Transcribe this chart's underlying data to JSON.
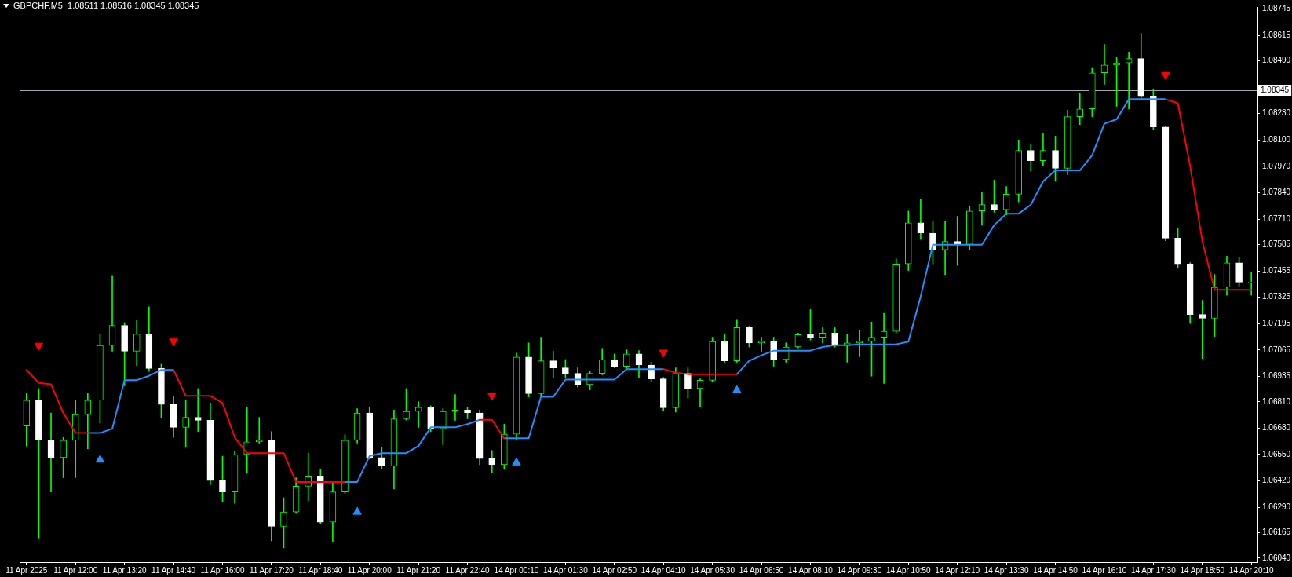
{
  "chart_data": {
    "type": "candlestick",
    "title": "GBPCHF,M5  1.08511 1.08516 1.08345 1.08345",
    "categories": [
      "11 Apr 2025",
      null,
      null,
      null,
      "11 Apr 12:00",
      null,
      null,
      null,
      "11 Apr 13:20",
      null,
      null,
      null,
      "11 Apr 14:40",
      null,
      null,
      null,
      "11 Apr 16:00",
      null,
      null,
      null,
      "11 Apr 17:20",
      null,
      null,
      null,
      "11 Apr 18:40",
      null,
      null,
      null,
      "11 Apr 20:00",
      null,
      null,
      null,
      "11 Apr 21:20",
      null,
      null,
      null,
      "11 Apr 22:40",
      null,
      null,
      null,
      "14 Apr 00:10",
      null,
      null,
      null,
      "14 Apr 01:30",
      null,
      null,
      null,
      "14 Apr 02:50",
      null,
      null,
      null,
      "14 Apr 04:10",
      null,
      null,
      null,
      "14 Apr 05:30",
      null,
      null,
      null,
      "14 Apr 06:50",
      null,
      null,
      null,
      "14 Apr 08:10",
      null,
      null,
      null,
      "14 Apr 09:30",
      null,
      null,
      null,
      "14 Apr 10:50",
      null,
      null,
      null,
      "14 Apr 12:10",
      null,
      null,
      null,
      "14 Apr 13:30",
      null,
      null,
      null,
      "14 Apr 14:50",
      null,
      null,
      null,
      "14 Apr 16:10",
      null,
      null,
      null,
      "14 Apr 17:30",
      null,
      null,
      null,
      "14 Apr 18:50",
      null,
      null,
      null,
      "14 Apr 20:10"
    ],
    "ohlc": [
      [
        1.06691,
        1.06853,
        1.06592,
        1.06818
      ],
      [
        1.06818,
        1.06875,
        1.06139,
        1.0662
      ],
      [
        1.0662,
        1.06755,
        1.06366,
        1.06535
      ],
      [
        1.06535,
        1.06634,
        1.06436,
        1.0662
      ],
      [
        1.0662,
        1.06818,
        1.06436,
        1.06747
      ],
      [
        1.06747,
        1.06853,
        1.06578,
        1.06818
      ],
      [
        1.06818,
        1.07143,
        1.06705,
        1.07087
      ],
      [
        1.07087,
        1.07433,
        1.07059,
        1.07186
      ],
      [
        1.07186,
        1.072,
        1.06889,
        1.07059
      ],
      [
        1.07059,
        1.07214,
        1.06988,
        1.07143
      ],
      [
        1.07143,
        1.07278,
        1.0696,
        1.06974
      ],
      [
        1.06974,
        1.06995,
        1.06733,
        1.06797
      ],
      [
        1.06797,
        1.06839,
        1.06634,
        1.06684
      ],
      [
        1.06684,
        1.06818,
        1.06585,
        1.06733
      ],
      [
        1.06733,
        1.06875,
        1.06663,
        1.06719
      ],
      [
        1.06719,
        1.06804,
        1.06401,
        1.06422
      ],
      [
        1.06422,
        1.06542,
        1.06316,
        1.06366
      ],
      [
        1.06366,
        1.06564,
        1.06309,
        1.0655
      ],
      [
        1.0655,
        1.06783,
        1.06458,
        1.06613
      ],
      [
        1.06613,
        1.06733,
        1.06606,
        1.0662
      ],
      [
        1.0662,
        1.06663,
        1.06125,
        1.06196
      ],
      [
        1.06196,
        1.06337,
        1.0609,
        1.06267
      ],
      [
        1.06267,
        1.06436,
        1.0626,
        1.06394
      ],
      [
        1.06394,
        1.06557,
        1.06323,
        1.06444
      ],
      [
        1.06444,
        1.06479,
        1.0621,
        1.06217
      ],
      [
        1.06217,
        1.06415,
        1.06118,
        1.06366
      ],
      [
        1.06366,
        1.06648,
        1.06359,
        1.0662
      ],
      [
        1.0662,
        1.06776,
        1.06606,
        1.06755
      ],
      [
        1.06755,
        1.06783,
        1.06528,
        1.06535
      ],
      [
        1.06535,
        1.06585,
        1.06479,
        1.06493
      ],
      [
        1.06493,
        1.06769,
        1.0638,
        1.06726
      ],
      [
        1.06726,
        1.06875,
        1.0672,
        1.06762
      ],
      [
        1.06762,
        1.06811,
        1.06684,
        1.06783
      ],
      [
        1.06783,
        1.0679,
        1.06663,
        1.06677
      ],
      [
        1.06677,
        1.06776,
        1.06599,
        1.06762
      ],
      [
        1.06762,
        1.06846,
        1.06719,
        1.06769
      ],
      [
        1.06769,
        1.06783,
        1.06726,
        1.06755
      ],
      [
        1.06755,
        1.0677,
        1.065,
        1.0653
      ],
      [
        1.0653,
        1.0657,
        1.0646,
        1.065
      ],
      [
        1.065,
        1.067,
        1.0648,
        1.0665
      ],
      [
        1.0665,
        1.0705,
        1.0662,
        1.0703
      ],
      [
        1.0703,
        1.071,
        1.06834,
        1.0685
      ],
      [
        1.0685,
        1.07128,
        1.0684,
        1.07012
      ],
      [
        1.07012,
        1.07059,
        1.0693,
        1.06977
      ],
      [
        1.06977,
        1.07018,
        1.0693,
        1.0695
      ],
      [
        1.0695,
        1.06977,
        1.06882,
        1.06895
      ],
      [
        1.06895,
        1.0696,
        1.06868,
        1.0695
      ],
      [
        1.0695,
        1.07073,
        1.06943,
        1.07018
      ],
      [
        1.07018,
        1.07046,
        1.06977,
        1.06985
      ],
      [
        1.06985,
        1.07066,
        1.0697,
        1.07046
      ],
      [
        1.07046,
        1.07062,
        1.0693,
        1.06991
      ],
      [
        1.06991,
        1.07005,
        1.06909,
        1.06923
      ],
      [
        1.06923,
        1.0693,
        1.06766,
        1.0678
      ],
      [
        1.0678,
        1.06977,
        1.06759,
        1.0695
      ],
      [
        1.0695,
        1.06977,
        1.06827,
        1.06875
      ],
      [
        1.06875,
        1.06923,
        1.06786,
        1.06916
      ],
      [
        1.06916,
        1.07128,
        1.06909,
        1.07107
      ],
      [
        1.07107,
        1.07141,
        1.07005,
        1.07012
      ],
      [
        1.07012,
        1.07216,
        1.07005,
        1.07175
      ],
      [
        1.07175,
        1.07182,
        1.0708,
        1.071
      ],
      [
        1.071,
        1.07128,
        1.07059,
        1.07107
      ],
      [
        1.07107,
        1.07128,
        1.06985,
        1.07018
      ],
      [
        1.07018,
        1.071,
        1.07005,
        1.0708
      ],
      [
        1.0708,
        1.07148,
        1.07075,
        1.07141
      ],
      [
        1.07141,
        1.07264,
        1.07114,
        1.07128
      ],
      [
        1.07128,
        1.07175,
        1.071,
        1.07148
      ],
      [
        1.07148,
        1.07175,
        1.0708,
        1.07087
      ],
      [
        1.07087,
        1.07141,
        1.07005,
        1.071
      ],
      [
        1.071,
        1.07162,
        1.07032,
        1.07107
      ],
      [
        1.07107,
        1.07203,
        1.06936,
        1.07128
      ],
      [
        1.07128,
        1.07246,
        1.069,
        1.07157
      ],
      [
        1.07157,
        1.07514,
        1.07151,
        1.07489
      ],
      [
        1.07489,
        1.0775,
        1.07457,
        1.07692
      ],
      [
        1.07692,
        1.07807,
        1.0761,
        1.07641
      ],
      [
        1.07641,
        1.07699,
        1.07489,
        1.07559
      ],
      [
        1.07559,
        1.07699,
        1.07437,
        1.076
      ],
      [
        1.076,
        1.07724,
        1.07482,
        1.07585
      ],
      [
        1.07585,
        1.07775,
        1.07558,
        1.0775
      ],
      [
        1.0775,
        1.07845,
        1.0768,
        1.07782
      ],
      [
        1.07782,
        1.07902,
        1.07744,
        1.07756
      ],
      [
        1.07756,
        1.07871,
        1.07731,
        1.07833
      ],
      [
        1.07833,
        1.081,
        1.07795,
        1.08049
      ],
      [
        1.08049,
        1.08081,
        1.07947,
        1.07998
      ],
      [
        1.07998,
        1.08132,
        1.07972,
        1.08049
      ],
      [
        1.08049,
        1.08119,
        1.07896,
        1.0796
      ],
      [
        1.0796,
        1.08247,
        1.07928,
        1.08215
      ],
      [
        1.08215,
        1.08329,
        1.08176,
        1.08253
      ],
      [
        1.08253,
        1.08457,
        1.08215,
        1.08431
      ],
      [
        1.08431,
        1.08571,
        1.08374,
        1.08469
      ],
      [
        1.08469,
        1.08508,
        1.08266,
        1.0848
      ],
      [
        1.0848,
        1.08533,
        1.08253,
        1.08501
      ],
      [
        1.08501,
        1.08625,
        1.08304,
        1.08317
      ],
      [
        1.08317,
        1.08348,
        1.08151,
        1.08164
      ],
      [
        1.08164,
        1.0817,
        1.07603,
        1.07616
      ],
      [
        1.07616,
        1.07667,
        1.07469,
        1.07489
      ],
      [
        1.07489,
        1.07495,
        1.07196,
        1.0724
      ],
      [
        1.0724,
        1.0731,
        1.07023,
        1.07221
      ],
      [
        1.07221,
        1.07437,
        1.07132,
        1.07374
      ],
      [
        1.07374,
        1.07527,
        1.07335,
        1.07495
      ],
      [
        1.07495,
        1.0752,
        1.0738,
        1.07399
      ],
      [
        1.07399,
        1.0745,
        1.07335,
        1.074
      ]
    ],
    "color": "#00ff00",
    "colors": [
      "#00ff00",
      "#ffffff",
      "#ffffff",
      "#00ff00",
      "#00ff00",
      "#00ff00",
      "#00ff00",
      "#00ff00",
      "#ffffff",
      "#00ff00",
      "#ffffff",
      "#ffffff",
      "#ffffff",
      "#00ff00",
      "#ffffff",
      "#ffffff",
      "#ffffff",
      "#00ff00",
      "#00ff00",
      "#00ff00",
      "#ffffff",
      "#00ff00",
      "#00ff00",
      "#00ff00",
      "#ffffff",
      "#00ff00",
      "#00ff00",
      "#00ff00",
      "#ffffff",
      "#ffffff",
      "#00ff00",
      "#00ff00",
      "#00ff00",
      "#ffffff",
      "#00ff00",
      "#00ff00",
      "#ffffff",
      "#ffffff",
      "#ffffff",
      "#00ff00",
      "#00ff00",
      "#ffffff",
      "#00ff00",
      "#ffffff",
      "#ffffff",
      "#ffffff",
      "#00ff00",
      "#00ff00",
      "#ffffff",
      "#00ff00",
      "#ffffff",
      "#ffffff",
      "#ffffff",
      "#00ff00",
      "#ffffff",
      "#00ff00",
      "#00ff00",
      "#ffffff",
      "#00ff00",
      "#ffffff",
      "#00ff00",
      "#ffffff",
      "#00ff00",
      "#00ff00",
      "#ffffff",
      "#00ff00",
      "#ffffff",
      "#00ff00",
      "#00ff00",
      "#00ff00",
      "#00ff00",
      "#00ff00",
      "#00ff00",
      "#ffffff",
      "#ffffff",
      "#00ff00",
      "#ffffff",
      "#00ff00",
      "#00ff00",
      "#ffffff",
      "#00ff00",
      "#00ff00",
      "#ffffff",
      "#00ff00",
      "#ffffff",
      "#00ff00",
      "#00ff00",
      "#00ff00",
      "#00ff00",
      "#00ff00",
      "#00ff00",
      "#ffffff",
      "#ffffff",
      "#ffffff",
      "#ffffff",
      "#ffffff",
      "#ffffff",
      "#00ff00",
      "#00ff00",
      "#ffffff",
      "#00ff00"
    ],
    "series": [
      {
        "type": "line",
        "color": "#ff0000",
        "values": [
          1.06967,
          1.06903,
          1.06896,
          1.06755,
          1.06656,
          1.06656,
          null,
          null,
          null,
          null,
          null,
          null,
          1.06967,
          1.06839,
          1.06839,
          1.06839,
          1.06804,
          1.06634,
          1.06557,
          1.06557,
          1.06557,
          1.06557,
          1.06415,
          1.06415,
          1.06415,
          1.06415,
          1.06415,
          null,
          null,
          null,
          null,
          null,
          null,
          null,
          null,
          null,
          null,
          1.06721,
          1.06721,
          1.0663,
          null,
          null,
          null,
          null,
          null,
          null,
          null,
          null,
          null,
          null,
          null,
          null,
          1.06971,
          1.06953,
          1.06946,
          1.06946,
          1.06946,
          1.06946,
          1.06946,
          null,
          null,
          null,
          null,
          null,
          null,
          null,
          null,
          null,
          null,
          null,
          null,
          null,
          null,
          null,
          null,
          null,
          null,
          null,
          null,
          null,
          null,
          null,
          null,
          null,
          null,
          null,
          null,
          null,
          null,
          null,
          null,
          null,
          null,
          1.08301,
          1.08281,
          1.07973,
          1.07601,
          1.07361,
          1.07361,
          1.07361,
          1.07361
        ]
      },
      {
        "type": "line",
        "color": "#1e90ff",
        "values": [
          null,
          null,
          null,
          null,
          null,
          1.06656,
          1.06656,
          1.06677,
          1.06917,
          1.06917,
          1.06938,
          1.06967,
          1.06967,
          null,
          null,
          null,
          null,
          null,
          null,
          null,
          null,
          null,
          null,
          null,
          null,
          null,
          1.06415,
          1.06415,
          1.06542,
          1.06557,
          1.06557,
          1.06557,
          1.06592,
          1.06684,
          1.06684,
          1.06684,
          1.067,
          1.06721,
          null,
          1.0663,
          1.0663,
          1.0663,
          1.06834,
          1.06834,
          1.06919,
          1.06919,
          1.06919,
          1.06919,
          1.06919,
          1.06971,
          1.06971,
          1.06971,
          1.06971,
          null,
          null,
          null,
          null,
          null,
          1.06946,
          1.07012,
          1.07039,
          1.07062,
          1.07062,
          1.07062,
          1.07062,
          1.0708,
          1.07089,
          1.07089,
          1.07093,
          1.07093,
          1.07093,
          1.07093,
          1.07106,
          1.07329,
          1.07584,
          1.07584,
          1.07584,
          1.07584,
          1.07584,
          1.0768,
          1.07737,
          1.07737,
          1.07781,
          1.07896,
          1.0795,
          1.0795,
          1.0795,
          1.08024,
          1.0818,
          1.08202,
          1.08301,
          1.08301,
          1.08301,
          1.08301,
          null,
          null,
          null,
          null,
          null,
          null,
          null
        ]
      },
      {
        "type": "scatter",
        "marker": "triangle",
        "color": "#ff0000",
        "values": [
          null,
          1.07087,
          null,
          null,
          null,
          null,
          null,
          null,
          null,
          null,
          null,
          null,
          1.07108,
          null,
          null,
          null,
          null,
          null,
          null,
          null,
          null,
          null,
          null,
          null,
          null,
          null,
          null,
          null,
          null,
          null,
          null,
          null,
          null,
          null,
          null,
          null,
          null,
          null,
          1.06841,
          null,
          null,
          null,
          null,
          null,
          null,
          null,
          null,
          null,
          null,
          null,
          null,
          null,
          1.07053,
          null,
          null,
          null,
          null,
          null,
          null,
          null,
          null,
          null,
          null,
          null,
          null,
          null,
          null,
          null,
          null,
          null,
          null,
          null,
          null,
          null,
          null,
          null,
          null,
          null,
          null,
          null,
          null,
          null,
          null,
          null,
          null,
          null,
          null,
          null,
          null,
          null,
          null,
          null,
          null,
          1.08421,
          null,
          null,
          null,
          null,
          null,
          null,
          null
        ]
      },
      {
        "type": "scatter",
        "marker": "triangle",
        "color": "#1e90ff",
        "values": [
          null,
          null,
          null,
          null,
          null,
          null,
          1.06524,
          null,
          null,
          null,
          null,
          null,
          null,
          null,
          null,
          null,
          null,
          null,
          null,
          null,
          null,
          null,
          null,
          null,
          null,
          null,
          null,
          1.06267,
          null,
          null,
          null,
          null,
          null,
          null,
          null,
          null,
          null,
          null,
          null,
          null,
          1.0651,
          null,
          null,
          null,
          null,
          null,
          null,
          null,
          null,
          null,
          null,
          null,
          null,
          null,
          null,
          null,
          null,
          null,
          1.06866,
          null,
          null,
          null,
          null,
          null,
          null,
          null,
          null,
          null,
          null,
          null,
          null,
          null,
          null,
          null,
          null,
          null,
          null,
          null,
          null,
          null,
          null,
          null,
          null,
          null,
          null,
          null,
          null,
          null,
          null,
          null,
          null,
          null,
          null,
          null,
          null,
          null,
          null,
          null,
          null,
          null,
          null
        ]
      }
    ],
    "ylim": [
      1.0602,
      1.08755
    ],
    "yticks": [
      {
        "value": 1.0604,
        "label": "1.06040"
      },
      1.06165,
      {
        "value": 1.0629,
        "label": "1.06290"
      },
      {
        "value": 1.0642,
        "label": "1.06420"
      },
      {
        "value": 1.0655,
        "label": "1.06550"
      },
      {
        "value": 1.0668,
        "label": "1.06680"
      },
      {
        "value": 1.0681,
        "label": "1.06810"
      },
      1.06935,
      1.07065,
      1.07195,
      1.07325,
      1.07455,
      1.07585,
      {
        "value": 1.0771,
        "label": "1.07710"
      },
      {
        "value": 1.0784,
        "label": "1.07840"
      },
      {
        "value": 1.0797,
        "label": "1.07970"
      },
      {
        "value": 1.081,
        "label": "1.08100"
      },
      {
        "value": 1.0823,
        "label": "1.08230"
      },
      {
        "value": 1.0849,
        "label": "1.08490"
      },
      1.08615,
      1.08745
    ],
    "ref_lines": [
      {
        "axis": "y",
        "value": 1.08345,
        "label": "1.08345",
        "color": "#a3a8ae"
      }
    ]
  }
}
